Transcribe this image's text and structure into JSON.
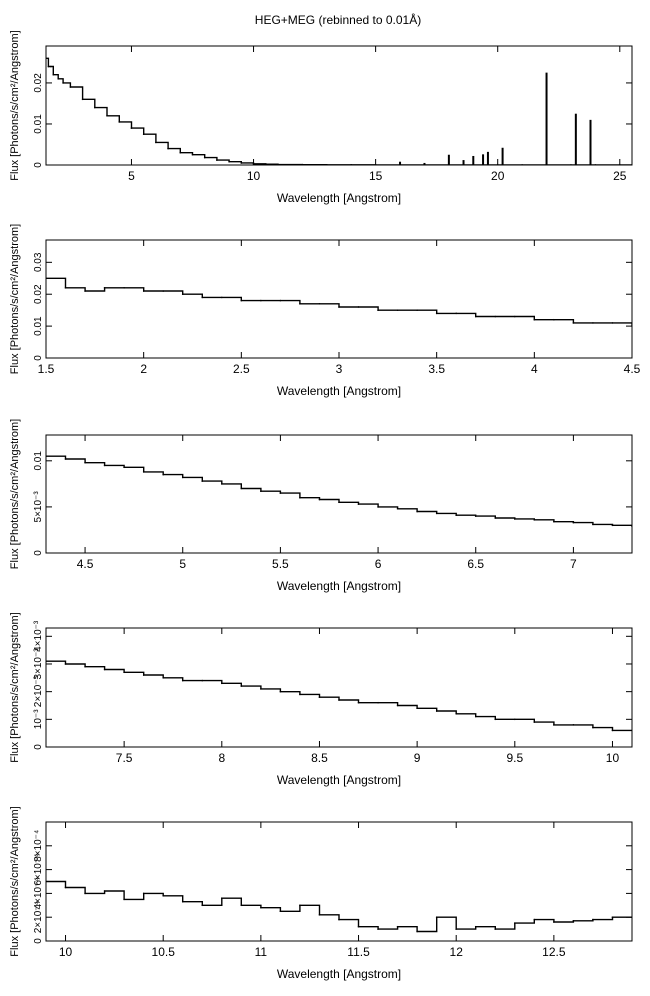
{
  "figure_title": "HEG+MEG (rebinned to 0.01Å)",
  "chart_data": [
    {
      "type": "line",
      "xlabel": "Wavelength [Angstrom]",
      "ylabel": "Flux [Photons/s/cm²/Angstrom]",
      "xlim": [
        1.5,
        25.5
      ],
      "ylim": [
        0,
        0.029
      ],
      "xticks": [
        5,
        10,
        15,
        20,
        25
      ],
      "xticklabels": [
        "5",
        "10",
        "15",
        "20",
        "25"
      ],
      "yticks": [
        0,
        0.01,
        0.02
      ],
      "yticklabels": [
        "0",
        "0.01",
        "0.02"
      ],
      "series": [
        {
          "x": [
            1.5,
            1.6,
            1.7,
            1.8,
            2,
            2.2,
            2.5,
            3,
            3.5,
            4,
            4.5,
            5,
            5.5,
            6,
            6.5,
            7,
            7.5,
            8,
            8.5,
            9,
            9.5,
            10,
            10.5,
            11,
            12,
            13,
            14,
            15,
            16,
            17,
            18,
            19,
            20,
            21,
            22,
            23,
            24,
            25,
            25.5
          ],
          "y": [
            0.026,
            0.024,
            0.024,
            0.022,
            0.021,
            0.02,
            0.019,
            0.016,
            0.014,
            0.012,
            0.0105,
            0.009,
            0.0075,
            0.0055,
            0.004,
            0.003,
            0.0025,
            0.0018,
            0.0012,
            0.0008,
            0.0005,
            0.0003,
            0.0002,
            0.0001,
            8e-05,
            5e-05,
            4e-05,
            3e-05,
            3e-05,
            2e-05,
            2e-05,
            2e-05,
            2e-05,
            2e-05,
            2e-05,
            2e-05,
            2e-05,
            2e-05,
            2e-05
          ]
        }
      ],
      "lines": [
        {
          "x": 16.0,
          "y": 0.0008
        },
        {
          "x": 17.0,
          "y": 0.0005
        },
        {
          "x": 18.0,
          "y": 0.0025
        },
        {
          "x": 18.6,
          "y": 0.0012
        },
        {
          "x": 19.0,
          "y": 0.0022
        },
        {
          "x": 19.4,
          "y": 0.0026
        },
        {
          "x": 19.6,
          "y": 0.0032
        },
        {
          "x": 20.2,
          "y": 0.0042
        },
        {
          "x": 22.0,
          "y": 0.0225
        },
        {
          "x": 23.2,
          "y": 0.0125
        },
        {
          "x": 23.8,
          "y": 0.011
        }
      ]
    },
    {
      "type": "line",
      "xlabel": "Wavelength [Angstrom]",
      "ylabel": "Flux [Photons/s/cm²/Angstrom]",
      "xlim": [
        1.5,
        4.5
      ],
      "ylim": [
        0,
        0.037
      ],
      "xticks": [
        1.5,
        2,
        2.5,
        3,
        3.5,
        4,
        4.5
      ],
      "xticklabels": [
        "1.5",
        "2",
        "2.5",
        "3",
        "3.5",
        "4",
        "4.5"
      ],
      "yticks": [
        0,
        0.01,
        0.02,
        0.03
      ],
      "yticklabels": [
        "0",
        "0.01",
        "0.02",
        "0.03"
      ],
      "series": [
        {
          "x": [
            1.5,
            1.6,
            1.7,
            1.8,
            1.9,
            2.0,
            2.1,
            2.2,
            2.3,
            2.4,
            2.5,
            2.6,
            2.7,
            2.8,
            2.9,
            3.0,
            3.1,
            3.2,
            3.3,
            3.4,
            3.5,
            3.6,
            3.7,
            3.8,
            3.9,
            4.0,
            4.1,
            4.2,
            4.3,
            4.4,
            4.5
          ],
          "y": [
            0.025,
            0.022,
            0.021,
            0.022,
            0.022,
            0.021,
            0.021,
            0.02,
            0.019,
            0.019,
            0.018,
            0.018,
            0.018,
            0.017,
            0.017,
            0.016,
            0.016,
            0.015,
            0.015,
            0.015,
            0.014,
            0.014,
            0.013,
            0.013,
            0.013,
            0.012,
            0.012,
            0.011,
            0.011,
            0.011,
            0.01
          ]
        }
      ]
    },
    {
      "type": "line",
      "xlabel": "Wavelength [Angstrom]",
      "ylabel": "Flux [Photons/s/cm²/Angstrom]",
      "xlim": [
        4.3,
        7.3
      ],
      "ylim": [
        0,
        0.0128
      ],
      "xticks": [
        4.5,
        5,
        5.5,
        6,
        6.5,
        7
      ],
      "xticklabels": [
        "4.5",
        "5",
        "5.5",
        "6",
        "6.5",
        "7"
      ],
      "yticks": [
        0,
        0.005,
        0.01
      ],
      "yticklabels": [
        "0",
        "5×10⁻³",
        "0.01"
      ],
      "series": [
        {
          "x": [
            4.3,
            4.4,
            4.5,
            4.6,
            4.7,
            4.8,
            4.9,
            5.0,
            5.1,
            5.2,
            5.3,
            5.4,
            5.5,
            5.6,
            5.7,
            5.8,
            5.9,
            6.0,
            6.1,
            6.2,
            6.3,
            6.4,
            6.5,
            6.6,
            6.7,
            6.8,
            6.9,
            7.0,
            7.1,
            7.2,
            7.3
          ],
          "y": [
            0.0105,
            0.0102,
            0.0098,
            0.0095,
            0.0093,
            0.0088,
            0.0085,
            0.0082,
            0.0078,
            0.0075,
            0.007,
            0.0067,
            0.0065,
            0.006,
            0.0058,
            0.0055,
            0.0053,
            0.005,
            0.0048,
            0.0045,
            0.0043,
            0.0041,
            0.004,
            0.0038,
            0.0037,
            0.0036,
            0.0034,
            0.0033,
            0.0031,
            0.003,
            0.0029
          ]
        }
      ]
    },
    {
      "type": "line",
      "xlabel": "Wavelength [Angstrom]",
      "ylabel": "Flux [Photons/s/cm²/Angstrom]",
      "xlim": [
        7.1,
        10.1
      ],
      "ylim": [
        0,
        0.0043
      ],
      "xticks": [
        7.5,
        8,
        8.5,
        9,
        9.5,
        10
      ],
      "xticklabels": [
        "7.5",
        "8",
        "8.5",
        "9",
        "9.5",
        "10"
      ],
      "yticks": [
        0,
        0.001,
        0.002,
        0.003,
        0.004
      ],
      "yticklabels": [
        "0",
        "10⁻³",
        "2×10⁻³",
        "3×10⁻³",
        "4×10⁻³"
      ],
      "series": [
        {
          "x": [
            7.1,
            7.2,
            7.3,
            7.4,
            7.5,
            7.6,
            7.7,
            7.8,
            7.9,
            8.0,
            8.1,
            8.2,
            8.3,
            8.4,
            8.5,
            8.6,
            8.7,
            8.8,
            8.9,
            9.0,
            9.1,
            9.2,
            9.3,
            9.4,
            9.5,
            9.6,
            9.7,
            9.8,
            9.9,
            10.0,
            10.1
          ],
          "y": [
            0.0031,
            0.003,
            0.0029,
            0.0028,
            0.0027,
            0.0026,
            0.0025,
            0.0024,
            0.0024,
            0.0023,
            0.0022,
            0.0021,
            0.002,
            0.0019,
            0.0018,
            0.0017,
            0.0016,
            0.0016,
            0.0015,
            0.0014,
            0.0013,
            0.0012,
            0.0011,
            0.001,
            0.001,
            0.0009,
            0.0008,
            0.0008,
            0.0007,
            0.0006,
            0.0006
          ]
        }
      ]
    },
    {
      "type": "line",
      "xlabel": "Wavelength [Angstrom]",
      "ylabel": "Flux [Photons/s/cm²/Angstrom]",
      "xlim": [
        9.9,
        12.9
      ],
      "ylim": [
        0,
        0.001
      ],
      "xticks": [
        10,
        10.5,
        11,
        11.5,
        12,
        12.5
      ],
      "xticklabels": [
        "10",
        "10.5",
        "11",
        "11.5",
        "12",
        "12.5"
      ],
      "yticks": [
        0,
        0.0002,
        0.0004,
        0.0006,
        0.0008
      ],
      "yticklabels": [
        "0",
        "2×10⁻⁴",
        "4×10⁻⁴",
        "6×10⁻⁴",
        "8×10⁻⁴"
      ],
      "series": [
        {
          "x": [
            9.9,
            10.0,
            10.1,
            10.2,
            10.3,
            10.4,
            10.5,
            10.6,
            10.7,
            10.8,
            10.9,
            11.0,
            11.1,
            11.2,
            11.3,
            11.4,
            11.5,
            11.6,
            11.7,
            11.8,
            11.9,
            12.0,
            12.1,
            12.2,
            12.3,
            12.4,
            12.5,
            12.6,
            12.7,
            12.8,
            12.9
          ],
          "y": [
            0.0005,
            0.00045,
            0.0004,
            0.00042,
            0.00035,
            0.0004,
            0.00038,
            0.00033,
            0.0003,
            0.00036,
            0.0003,
            0.00028,
            0.00025,
            0.0003,
            0.00022,
            0.00018,
            0.00012,
            0.0001,
            0.00012,
            8e-05,
            0.0002,
            0.0001,
            0.00012,
            0.0001,
            0.00015,
            0.00018,
            0.00016,
            0.00017,
            0.00018,
            0.0002,
            0.0002
          ]
        }
      ]
    }
  ]
}
